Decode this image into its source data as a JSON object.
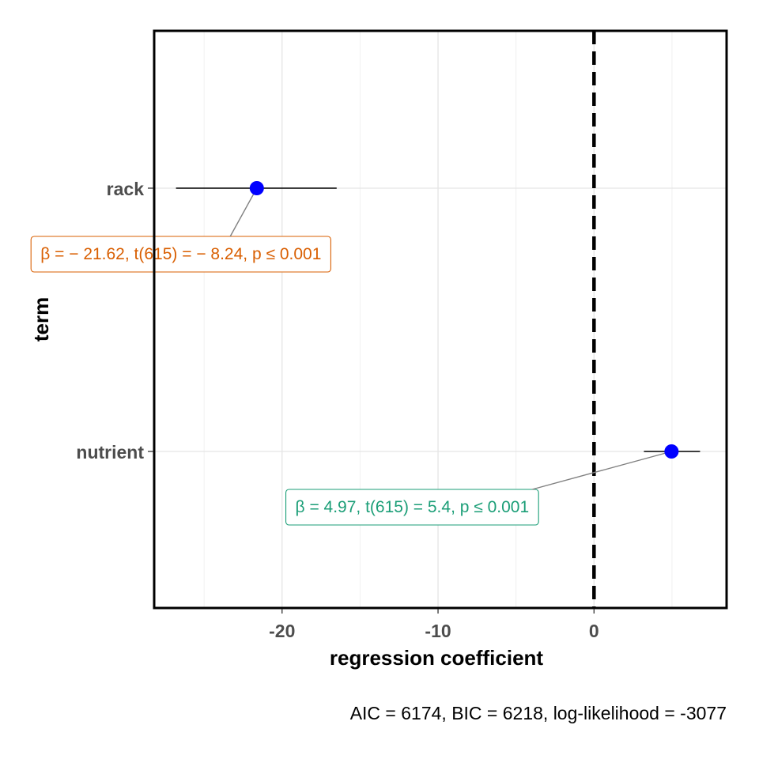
{
  "chart_data": {
    "type": "scatter",
    "xlabel": "regression coefficient",
    "ylabel": "term",
    "xlim": [
      -28.2,
      8.5
    ],
    "x_ticks": [
      -20,
      -10,
      0
    ],
    "x_tick_labels": [
      "-20",
      "-10",
      "0"
    ],
    "reference_line_x": 0,
    "grid": true,
    "caption": "AIC = 6174, BIC = 6218, log-likelihood = -3077",
    "terms": [
      {
        "label": "rack",
        "estimate": -21.62,
        "conf_low": -26.8,
        "conf_high": -16.5,
        "annotation": "β = − 21.62,  t(615) = − 8.24,  p ≤ 0.001",
        "annotation_color": "#D95F02"
      },
      {
        "label": "nutrient",
        "estimate": 4.97,
        "conf_low": 3.2,
        "conf_high": 6.8,
        "annotation": "β = 4.97,  t(615) = 5.4,  p ≤ 0.001",
        "annotation_color": "#1B9E77"
      }
    ],
    "point_color": "#0000FF"
  }
}
